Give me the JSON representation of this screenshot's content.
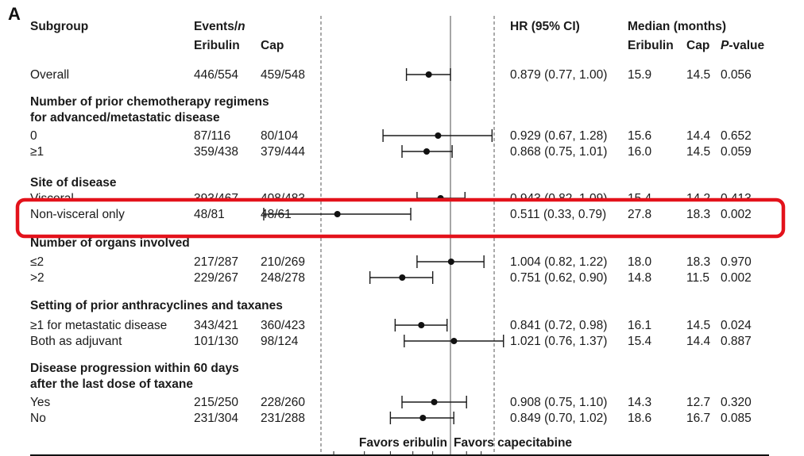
{
  "panel_label": "A",
  "headers": {
    "subgroup": "Subgroup",
    "events": "Events/",
    "events_n": "n",
    "eribulin": "Eribulin",
    "cap": "Cap",
    "hr": "HR (95% CI)",
    "median": "Median (months)",
    "median_eribulin": "Eribulin",
    "median_cap": "Cap",
    "p": "P",
    "p_suffix": "-value"
  },
  "favors": {
    "left": "Favors eribulin",
    "right": "Favors capecitabine"
  },
  "highlight": {
    "row": "Non-visceral only",
    "color": "#e3121b"
  },
  "chart_data": {
    "type": "forest",
    "reference_line": 1.0,
    "xlim": [
      0.3,
      1.5
    ],
    "groups": [
      {
        "header": [],
        "rows": [
          {
            "label": "Overall",
            "events_eribulin": "446/554",
            "events_cap": "459/548",
            "hr": 0.879,
            "ci": [
              0.77,
              1.0
            ],
            "hr_text": "0.879 (0.77, 1.00)",
            "median_eribulin": "15.9",
            "median_cap": "14.5",
            "p": "0.056"
          }
        ]
      },
      {
        "header": [
          "Number of prior chemotherapy regimens",
          "for advanced/metastatic disease"
        ],
        "rows": [
          {
            "label": "0",
            "events_eribulin": "87/116",
            "events_cap": "80/104",
            "hr": 0.929,
            "ci": [
              0.67,
              1.28
            ],
            "hr_text": "0.929 (0.67, 1.28)",
            "median_eribulin": "15.6",
            "median_cap": "14.4",
            "p": "0.652"
          },
          {
            "label": "≥1",
            "events_eribulin": "359/438",
            "events_cap": "379/444",
            "hr": 0.868,
            "ci": [
              0.75,
              1.01
            ],
            "hr_text": "0.868 (0.75, 1.01)",
            "median_eribulin": "16.0",
            "median_cap": "14.5",
            "p": "0.059"
          }
        ]
      },
      {
        "header": [
          "Site of disease"
        ],
        "rows": [
          {
            "label": "Visceral",
            "events_eribulin": "393/467",
            "events_cap": "408/483",
            "hr": 0.943,
            "ci": [
              0.82,
              1.09
            ],
            "hr_text": "0.943 (0.82, 1.09)",
            "median_eribulin": "15.4",
            "median_cap": "14.2",
            "p": "0.413",
            "occluded": true
          },
          {
            "label": "Non-visceral only",
            "events_eribulin": "48/81",
            "events_cap": "48/61",
            "hr": 0.511,
            "ci": [
              0.33,
              0.79
            ],
            "hr_text": "0.511 (0.33, 0.79)",
            "median_eribulin": "27.8",
            "median_cap": "18.3",
            "p": "0.002"
          }
        ]
      },
      {
        "header": [
          "Number of organs involved"
        ],
        "rows": [
          {
            "label": "≤2",
            "events_eribulin": "217/287",
            "events_cap": "210/269",
            "hr": 1.004,
            "ci": [
              0.82,
              1.22
            ],
            "hr_text": "1.004 (0.82, 1.22)",
            "median_eribulin": "18.0",
            "median_cap": "18.3",
            "p": "0.970"
          },
          {
            "label": ">2",
            "events_eribulin": "229/267",
            "events_cap": "248/278",
            "hr": 0.751,
            "ci": [
              0.62,
              0.9
            ],
            "hr_text": "0.751 (0.62, 0.90)",
            "median_eribulin": "14.8",
            "median_cap": "11.5",
            "p": "0.002"
          }
        ]
      },
      {
        "header": [
          "Setting of prior anthracyclines and taxanes"
        ],
        "rows": [
          {
            "label": "≥1 for metastatic disease",
            "events_eribulin": "343/421",
            "events_cap": "360/423",
            "hr": 0.841,
            "ci": [
              0.72,
              0.98
            ],
            "hr_text": "0.841 (0.72, 0.98)",
            "median_eribulin": "16.1",
            "median_cap": "14.5",
            "p": "0.024"
          },
          {
            "label": "Both as adjuvant",
            "events_eribulin": "101/130",
            "events_cap": "98/124",
            "hr": 1.021,
            "ci": [
              0.76,
              1.37
            ],
            "hr_text": "1.021 (0.76, 1.37)",
            "median_eribulin": "15.4",
            "median_cap": "14.4",
            "p": "0.887"
          }
        ]
      },
      {
        "header": [
          "Disease progression within 60 days",
          "after the last dose of taxane"
        ],
        "rows": [
          {
            "label": "Yes",
            "events_eribulin": "215/250",
            "events_cap": "228/260",
            "hr": 0.908,
            "ci": [
              0.75,
              1.1
            ],
            "hr_text": "0.908 (0.75, 1.10)",
            "median_eribulin": "14.3",
            "median_cap": "12.7",
            "p": "0.320"
          },
          {
            "label": "No",
            "events_eribulin": "231/304",
            "events_cap": "231/288",
            "hr": 0.849,
            "ci": [
              0.7,
              1.02
            ],
            "hr_text": "0.849 (0.70, 1.02)",
            "median_eribulin": "18.6",
            "median_cap": "16.7",
            "p": "0.085"
          }
        ]
      }
    ]
  }
}
